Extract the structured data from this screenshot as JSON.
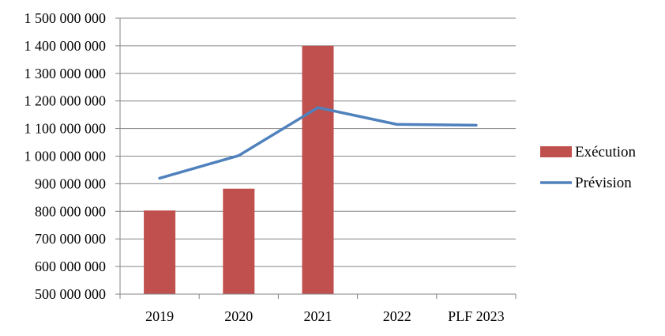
{
  "chart_data": {
    "type": "bar",
    "categories": [
      "2019",
      "2020",
      "2021",
      "2022",
      "PLF 2023"
    ],
    "y_ticks": [
      "500 000 000",
      "600 000 000",
      "700 000 000",
      "800 000 000",
      "900 000 000",
      "1 000 000 000",
      "1 100 000 000",
      "1 200 000 000",
      "1 300 000 000",
      "1 400 000 000",
      "1 500 000 000"
    ],
    "ylim": [
      500000000,
      1500000000
    ],
    "grid": true,
    "legend_position": "right",
    "series": [
      {
        "name": "Exécution",
        "type": "bar",
        "color": "#C0504D",
        "values": [
          803000000,
          882000000,
          1400000000,
          null,
          null
        ]
      },
      {
        "name": "Prévision",
        "type": "line",
        "color": "#4F81BD",
        "values": [
          920000000,
          1002000000,
          1176000000,
          1115000000,
          1112000000
        ]
      }
    ]
  }
}
